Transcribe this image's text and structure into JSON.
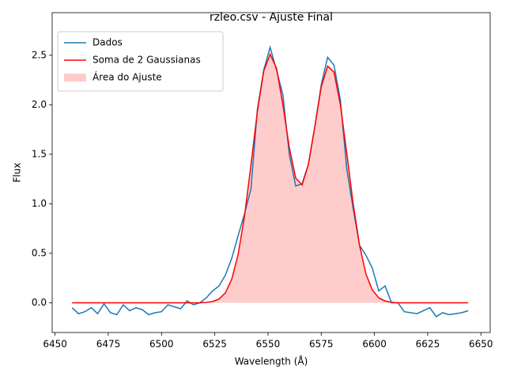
{
  "chart_data": {
    "type": "line",
    "title": "rzleo.csv - Ajuste Final",
    "xlabel": "Wavelength (Å)",
    "ylabel": "Flux",
    "x": [
      6458,
      6461,
      6464,
      6467,
      6470,
      6473,
      6476,
      6479,
      6482,
      6485,
      6488,
      6491,
      6494,
      6497,
      6500,
      6503,
      6506,
      6509,
      6512,
      6515,
      6518,
      6521,
      6524,
      6527,
      6530,
      6533,
      6536,
      6539,
      6542,
      6545,
      6548,
      6551,
      6554,
      6557,
      6560,
      6563,
      6566,
      6569,
      6572,
      6575,
      6578,
      6581,
      6584,
      6587,
      6590,
      6593,
      6596,
      6599,
      6602,
      6605,
      6608,
      6611,
      6614,
      6617,
      6620,
      6623,
      6626,
      6629,
      6632,
      6635,
      6638,
      6641,
      6644
    ],
    "series": [
      {
        "name": "Dados",
        "color": "#1f77b4",
        "values": [
          -0.05,
          -0.11,
          -0.09,
          -0.05,
          -0.11,
          -0.01,
          -0.1,
          -0.12,
          -0.02,
          -0.08,
          -0.05,
          -0.07,
          -0.12,
          -0.1,
          -0.09,
          -0.02,
          -0.04,
          -0.06,
          0.02,
          -0.02,
          0,
          0.05,
          0.12,
          0.17,
          0.28,
          0.45,
          0.68,
          0.9,
          1.15,
          1.95,
          2.35,
          2.58,
          2.35,
          2.1,
          1.5,
          1.18,
          1.2,
          1.4,
          1.78,
          2.2,
          2.48,
          2.4,
          2.05,
          1.35,
          0.95,
          0.58,
          0.48,
          0.35,
          0.12,
          0.17,
          0,
          0,
          -0.09,
          -0.1,
          -0.11,
          -0.08,
          -0.05,
          -0.14,
          -0.1,
          -0.12,
          -0.11,
          -0.1,
          -0.08
        ]
      },
      {
        "name": "Soma de 2 Gaussianas",
        "color": "#ff0000",
        "values": [
          0,
          0,
          0,
          0,
          0,
          0,
          0,
          0,
          0,
          0,
          0,
          0,
          0,
          0,
          0,
          0,
          0,
          0,
          0,
          0,
          0,
          0.004,
          0.013,
          0.038,
          0.1,
          0.24,
          0.49,
          0.88,
          1.39,
          1.93,
          2.34,
          2.51,
          2.37,
          2.0,
          1.57,
          1.26,
          1.19,
          1.4,
          1.78,
          2.18,
          2.39,
          2.33,
          2.0,
          1.51,
          1.0,
          0.58,
          0.29,
          0.13,
          0.05,
          0.018,
          0.005,
          0,
          0,
          0,
          0,
          0,
          0,
          0,
          0,
          0,
          0,
          0,
          0
        ]
      },
      {
        "name": "Área do Ajuste",
        "color": "#ffcccc",
        "fill": true,
        "values": [
          0,
          0,
          0,
          0,
          0,
          0,
          0,
          0,
          0,
          0,
          0,
          0,
          0,
          0,
          0,
          0,
          0,
          0,
          0,
          0,
          0,
          0.004,
          0.013,
          0.038,
          0.1,
          0.24,
          0.49,
          0.88,
          1.39,
          1.93,
          2.34,
          2.51,
          2.37,
          2.0,
          1.57,
          1.26,
          1.19,
          1.4,
          1.78,
          2.18,
          2.39,
          2.33,
          2.0,
          1.51,
          1.0,
          0.58,
          0.29,
          0.13,
          0.05,
          0.018,
          0.005,
          0,
          0,
          0,
          0,
          0,
          0,
          0,
          0,
          0,
          0,
          0,
          0
        ]
      }
    ],
    "xlim": [
      6448.65,
      6654.35
    ],
    "ylim": [
      -0.3,
      2.93
    ],
    "xticks": [
      6450,
      6475,
      6500,
      6525,
      6550,
      6575,
      6600,
      6625,
      6650
    ],
    "yticks": [
      {
        "value": 0,
        "label": "0.0"
      },
      {
        "value": 0.5,
        "label": "0.5"
      },
      {
        "value": 1,
        "label": "1.0"
      },
      {
        "value": 1.5,
        "label": "1.5"
      },
      {
        "value": 2,
        "label": "2.0"
      },
      {
        "value": 2.5,
        "label": "2.5"
      }
    ],
    "legend": "upper left"
  }
}
